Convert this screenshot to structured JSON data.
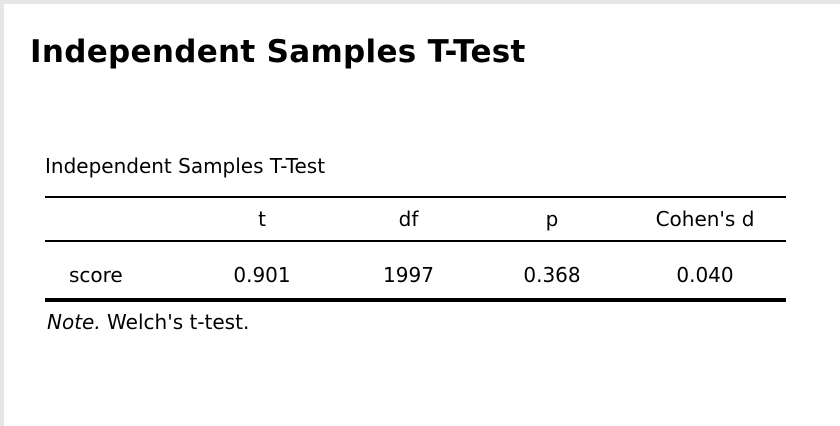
{
  "page": {
    "heading": "Independent Samples T-Test"
  },
  "table": {
    "caption": "Independent Samples T-Test",
    "columns": [
      "",
      "t",
      "df",
      "p",
      "Cohen's d"
    ],
    "rows": [
      {
        "label": "score",
        "t": "0.901",
        "df": "1997",
        "p": "0.368",
        "cohens_d": "0.040"
      }
    ],
    "note_label": "Note.",
    "note_text": " Welch's t-test."
  }
}
